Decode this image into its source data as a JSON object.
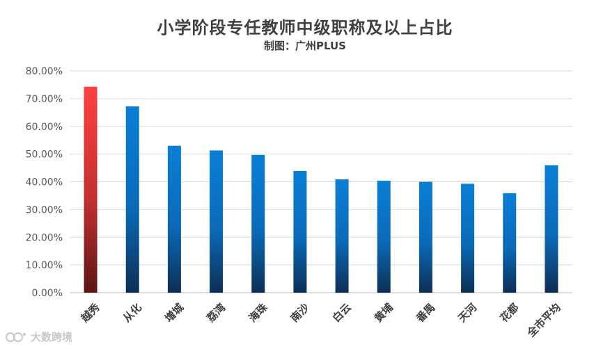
{
  "chart_data": {
    "type": "bar",
    "title": "小学阶段专任教师中级职称及以上占比",
    "subtitle": "制图：广州PLUS",
    "categories": [
      "越秀",
      "从化",
      "增城",
      "荔湾",
      "海珠",
      "南沙",
      "白云",
      "黄埔",
      "番禺",
      "天河",
      "花都",
      "全市平均"
    ],
    "values": [
      74.3,
      67.2,
      53.0,
      51.3,
      49.7,
      43.9,
      40.9,
      40.4,
      40.0,
      39.3,
      35.9,
      46.0
    ],
    "highlight_index": 0,
    "ylim": [
      0,
      80
    ],
    "yticks": [
      "0.00%",
      "10.00%",
      "20.00%",
      "30.00%",
      "40.00%",
      "50.00%",
      "60.00%",
      "70.00%",
      "80.00%"
    ],
    "xlabel": "",
    "ylabel": "",
    "grid": true,
    "colors": {
      "bar_top": "#0a7fd6",
      "bar_bottom": "#0d2f55",
      "highlight_top": "#ff4040",
      "highlight_bottom": "#5a1616",
      "grid": "#d9d9d9",
      "axis_text": "#595959"
    }
  },
  "watermark": {
    "text": "大数跨境",
    "icon": "chat-bubble-logo-icon"
  }
}
